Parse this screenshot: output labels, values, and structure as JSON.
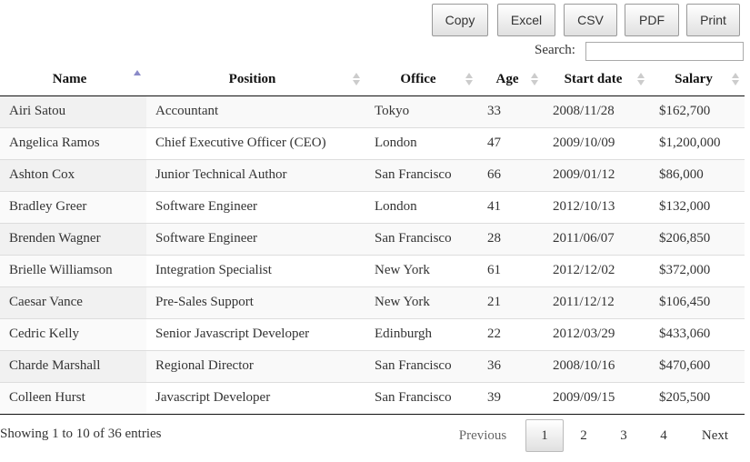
{
  "buttons": {
    "copy": "Copy",
    "excel": "Excel",
    "csv": "CSV",
    "pdf": "PDF",
    "print": "Print"
  },
  "search": {
    "label": "Search:",
    "value": ""
  },
  "table": {
    "headers": [
      "Name",
      "Position",
      "Office",
      "Age",
      "Start date",
      "Salary"
    ],
    "sort": {
      "column": "Name",
      "direction": "ascending"
    },
    "rows": [
      [
        "Airi Satou",
        "Accountant",
        "Tokyo",
        "33",
        "2008/11/28",
        "$162,700"
      ],
      [
        "Angelica Ramos",
        "Chief Executive Officer (CEO)",
        "London",
        "47",
        "2009/10/09",
        "$1,200,000"
      ],
      [
        "Ashton Cox",
        "Junior Technical Author",
        "San Francisco",
        "66",
        "2009/01/12",
        "$86,000"
      ],
      [
        "Bradley Greer",
        "Software Engineer",
        "London",
        "41",
        "2012/10/13",
        "$132,000"
      ],
      [
        "Brenden Wagner",
        "Software Engineer",
        "San Francisco",
        "28",
        "2011/06/07",
        "$206,850"
      ],
      [
        "Brielle Williamson",
        "Integration Specialist",
        "New York",
        "61",
        "2012/12/02",
        "$372,000"
      ],
      [
        "Caesar Vance",
        "Pre-Sales Support",
        "New York",
        "21",
        "2011/12/12",
        "$106,450"
      ],
      [
        "Cedric Kelly",
        "Senior Javascript Developer",
        "Edinburgh",
        "22",
        "2012/03/29",
        "$433,060"
      ],
      [
        "Charde Marshall",
        "Regional Director",
        "San Francisco",
        "36",
        "2008/10/16",
        "$470,600"
      ],
      [
        "Colleen Hurst",
        "Javascript Developer",
        "San Francisco",
        "39",
        "2009/09/15",
        "$205,500"
      ]
    ]
  },
  "footer": {
    "info": "Showing 1 to 10 of 36 entries",
    "pagination": {
      "previous": "Previous",
      "pages": [
        "1",
        "2",
        "3",
        "4"
      ],
      "current": "1",
      "next": "Next"
    }
  },
  "colors": {
    "sort_active": "#8a8ac8",
    "sort_inactive": "#cccccc",
    "sorted_column_bg": "#f1f1f1"
  }
}
